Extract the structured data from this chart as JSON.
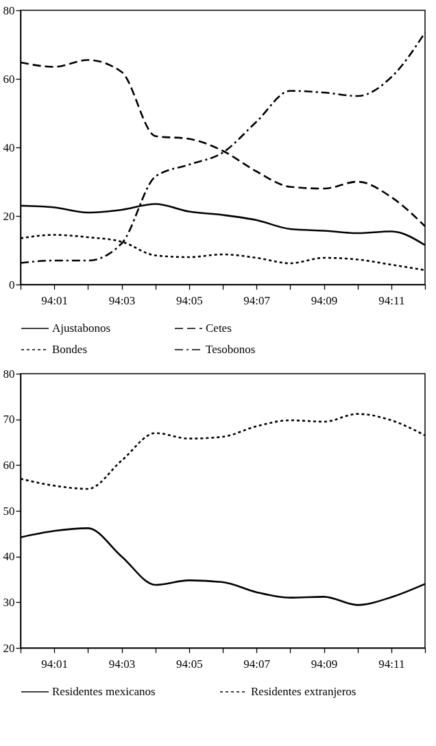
{
  "chart_data": [
    {
      "type": "line",
      "categories": [
        null,
        "94:01",
        null,
        "94:03",
        null,
        "94:05",
        null,
        "94:07",
        null,
        "94:09",
        null,
        "94:11",
        null
      ],
      "ylim": [
        0,
        80
      ],
      "yticks": [
        0,
        20,
        40,
        60,
        80
      ],
      "grid": false,
      "legend": "bottom",
      "series": [
        {
          "name": "Ajustabonos",
          "color": "#000000",
          "line_style": "solid",
          "values": [
            23,
            22.5,
            21,
            21.8,
            23.5,
            21.3,
            20.3,
            18.8,
            16.2,
            15.7,
            15,
            15.5,
            11.5
          ]
        },
        {
          "name": "Cetes",
          "color": "#000000",
          "line_style": "dashed",
          "values": [
            64.8,
            63.5,
            65.5,
            62,
            43.3,
            42.5,
            39,
            33,
            28.5,
            28,
            30,
            25.5,
            17
          ]
        },
        {
          "name": "Bondes",
          "color": "#000000",
          "line_style": "dotted",
          "values": [
            13.5,
            14.5,
            13.8,
            12.5,
            8.5,
            8,
            8.8,
            7.8,
            6.2,
            7.8,
            7.3,
            5.8,
            4.2
          ]
        },
        {
          "name": "Tesobonos",
          "color": "#000000",
          "line_style": "dashdot",
          "values": [
            6.3,
            7,
            7,
            12,
            31.5,
            35,
            38.5,
            47.5,
            56.5,
            56,
            55,
            60.5,
            73.5
          ]
        }
      ]
    },
    {
      "type": "line",
      "categories": [
        null,
        "94:01",
        null,
        "94:03",
        null,
        "94:05",
        null,
        "94:07",
        null,
        "94:09",
        null,
        "94:11",
        null
      ],
      "ylim": [
        20,
        80
      ],
      "yticks": [
        20,
        30,
        40,
        50,
        60,
        70,
        80
      ],
      "grid": false,
      "legend": "bottom",
      "series": [
        {
          "name": "Residentes mexicanos",
          "color": "#000000",
          "line_style": "solid",
          "values": [
            44.2,
            45.6,
            46.2,
            40,
            33.8,
            34.8,
            34.4,
            32.2,
            31,
            31.2,
            29.4,
            31.1,
            34
          ]
        },
        {
          "name": "Residentes extranjeros",
          "color": "#000000",
          "line_style": "dotted",
          "values": [
            57,
            55.5,
            54.8,
            61,
            67,
            65.8,
            66.2,
            68.5,
            69.8,
            69.5,
            71.2,
            69.8,
            66.5
          ]
        }
      ]
    }
  ]
}
